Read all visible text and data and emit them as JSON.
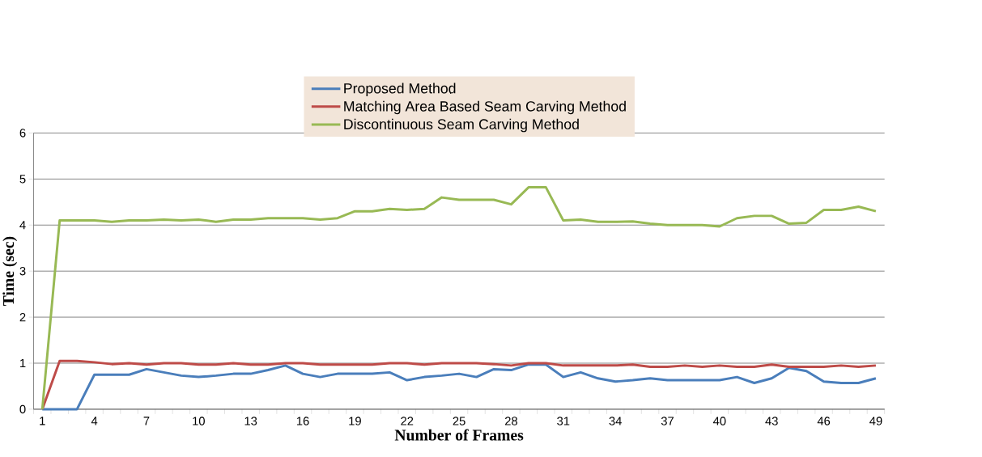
{
  "chart_data": {
    "type": "line",
    "xlabel": "Number of Frames",
    "ylabel": "Time (sec)",
    "categories": [
      "1",
      null,
      null,
      "4",
      null,
      null,
      "7",
      null,
      null,
      "10",
      null,
      null,
      "13",
      null,
      null,
      "16",
      null,
      null,
      "19",
      null,
      null,
      "22",
      null,
      null,
      "25",
      null,
      null,
      "28",
      null,
      null,
      "31",
      null,
      null,
      "34",
      null,
      null,
      "37",
      null,
      null,
      "40",
      null,
      null,
      "43",
      null,
      null,
      "46",
      null,
      null,
      "49"
    ],
    "ylim": [
      0,
      6
    ],
    "yticks": [
      0,
      1,
      2,
      3,
      4,
      5,
      6
    ],
    "grid": "y",
    "legend": "top",
    "marker": "none",
    "line_style": "solid",
    "series": [
      {
        "name": "Proposed Method",
        "color": "#4a7ebb",
        "values": [
          0,
          0,
          0,
          0.75,
          0.75,
          0.75,
          0.87,
          0.8,
          0.73,
          0.7,
          0.73,
          0.77,
          0.77,
          0.85,
          0.95,
          0.77,
          0.7,
          0.77,
          0.77,
          0.77,
          0.8,
          0.63,
          0.7,
          0.73,
          0.77,
          0.7,
          0.87,
          0.85,
          0.97,
          0.97,
          0.7,
          0.8,
          0.67,
          0.6,
          0.63,
          0.67,
          0.63,
          0.63,
          0.63,
          0.63,
          0.7,
          0.57,
          0.67,
          0.9,
          0.83,
          0.6,
          0.57,
          0.57,
          0.67
        ]
      },
      {
        "name": "Matching Area Based Seam Carving Method",
        "color": "#be4b48",
        "values": [
          0,
          1.05,
          1.05,
          1.02,
          0.98,
          1.0,
          0.97,
          1.0,
          1.0,
          0.97,
          0.97,
          1.0,
          0.97,
          0.97,
          1.0,
          1.0,
          0.97,
          0.97,
          0.97,
          0.97,
          1.0,
          1.0,
          0.97,
          1.0,
          1.0,
          1.0,
          0.98,
          0.95,
          1.0,
          1.0,
          0.95,
          0.95,
          0.95,
          0.95,
          0.97,
          0.92,
          0.92,
          0.95,
          0.92,
          0.95,
          0.92,
          0.92,
          0.97,
          0.92,
          0.92,
          0.92,
          0.95,
          0.92,
          0.95
        ]
      },
      {
        "name": "Discontinuous Seam Carving Method",
        "color": "#98b954",
        "values": [
          0,
          4.1,
          4.1,
          4.1,
          4.07,
          4.1,
          4.1,
          4.12,
          4.1,
          4.12,
          4.07,
          4.12,
          4.12,
          4.15,
          4.15,
          4.15,
          4.12,
          4.15,
          4.3,
          4.3,
          4.35,
          4.33,
          4.35,
          4.6,
          4.55,
          4.55,
          4.55,
          4.45,
          4.82,
          4.82,
          4.1,
          4.12,
          4.07,
          4.07,
          4.08,
          4.03,
          4.0,
          4.0,
          4.0,
          3.97,
          4.15,
          4.2,
          4.2,
          4.03,
          4.05,
          4.33,
          4.33,
          4.4,
          4.3
        ]
      }
    ]
  }
}
